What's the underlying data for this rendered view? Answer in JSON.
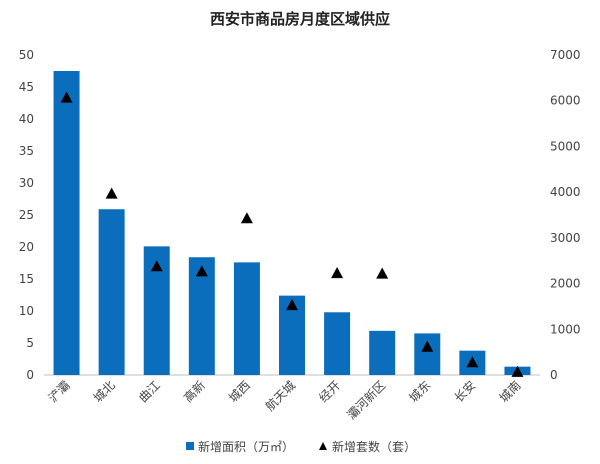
{
  "chart_data": {
    "type": "bar",
    "title": "西安市商品房月度区域供应",
    "categories": [
      "浐灞",
      "城北",
      "曲江",
      "高新",
      "城西",
      "航天城",
      "经开",
      "灞河新区",
      "城东",
      "长安",
      "城南"
    ],
    "series": [
      {
        "name": "新增面积（万㎡）",
        "type": "bar",
        "axis": "left",
        "color": "#0a6ebd",
        "values": [
          47.5,
          25.9,
          20.1,
          18.4,
          17.6,
          12.4,
          9.8,
          6.9,
          6.5,
          3.8,
          1.3
        ]
      },
      {
        "name": "新增套数（套）",
        "type": "scatter",
        "marker": "triangle",
        "axis": "right",
        "color": "#000000",
        "values": [
          6070,
          3970,
          2380,
          2270,
          3430,
          1530,
          2230,
          2220,
          620,
          280,
          70
        ]
      }
    ],
    "y_left": {
      "min": 0,
      "max": 50,
      "ticks": [
        0,
        5,
        10,
        15,
        20,
        25,
        30,
        35,
        40,
        45,
        50
      ]
    },
    "y_right": {
      "min": 0,
      "max": 7000,
      "ticks": [
        0,
        1000,
        2000,
        3000,
        4000,
        5000,
        6000,
        7000
      ]
    },
    "legend_position": "bottom",
    "grid": false
  }
}
